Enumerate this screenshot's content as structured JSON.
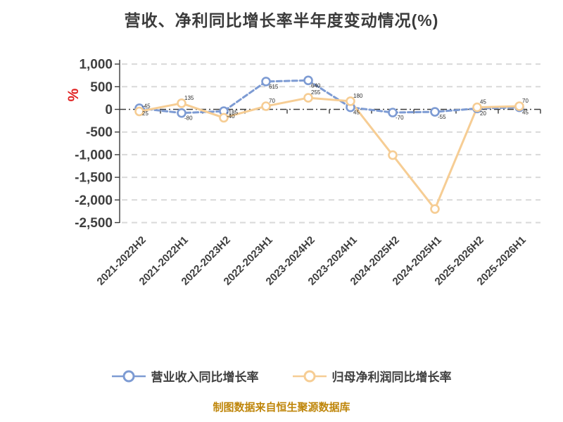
{
  "title": "营收、净利同比增长率半年度变动情况(%)",
  "y_axis_unit": "%",
  "footer": "制图数据来自恒生聚源数据库",
  "colors": {
    "title_text": "#3b3b3b",
    "axis_text": "#3f3f3f",
    "y_unit_red": "#e02020",
    "revenue_blue": "#7d9bd3",
    "net_profit_orange": "#f6cd94",
    "footer_gold": "#bf860b",
    "gridline": "#d9d9d9",
    "background": "#ffffff"
  },
  "chart_data": {
    "type": "line",
    "title": "营收、净利同比增长率半年度变动情况(%)",
    "xlabel": "",
    "ylabel": "%",
    "ylim": [
      -2500,
      1000
    ],
    "grid": "horizontal-dashed",
    "legend_position": "bottom",
    "categories": [
      "2021-2022H2",
      "2021-2022H1",
      "2022-2023H2",
      "2022-2023H1",
      "2023-2024H2",
      "2023-2024H1",
      "2024-2025H2",
      "2024-2025H1",
      "2025-2026H2",
      "2025-2026H1"
    ],
    "y_ticks": [
      1000,
      500,
      0,
      -500,
      -1000,
      -1500,
      -2000,
      -2500
    ],
    "y_tick_labels": [
      "1,000",
      "500",
      "0",
      "-500",
      "-1,000",
      "-1,500",
      "-2,000",
      "-2,500"
    ],
    "series": [
      {
        "name": "营业收入同比增长率",
        "color": "#7d9bd3",
        "style": "dashed",
        "marker": "open-circle",
        "values": [
          25,
          -80,
          -40,
          615,
          640,
          45,
          -70,
          -55,
          20,
          45
        ],
        "point_labels_visible": [
          true,
          true,
          true,
          true,
          true,
          true,
          true,
          true,
          true,
          true
        ]
      },
      {
        "name": "归母净利润同比增长率",
        "color": "#f6cd94",
        "style": "solid",
        "marker": "open-circle",
        "values": [
          -45,
          135,
          -185,
          70,
          255,
          180,
          -1010,
          -2200,
          45,
          70
        ],
        "point_labels_visible": [
          true,
          true,
          true,
          true,
          true,
          true,
          false,
          false,
          true,
          true
        ]
      }
    ]
  }
}
